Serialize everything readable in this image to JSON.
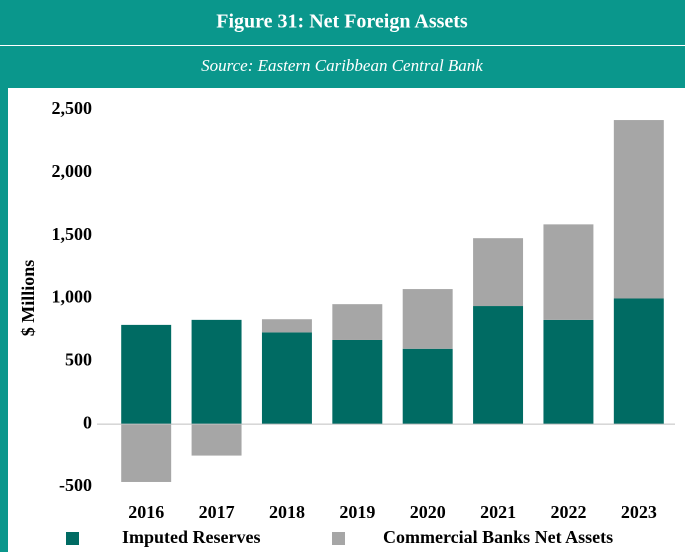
{
  "chart_data": {
    "type": "stacked_bar",
    "title": "Figure 31: Net Foreign Assets",
    "subtitle": "Source: Eastern Caribbean Central Bank",
    "y_label": "$ Millions",
    "categories": [
      "2016",
      "2017",
      "2018",
      "2019",
      "2020",
      "2021",
      "2022",
      "2023"
    ],
    "series": [
      {
        "name": "Imputed Reserves",
        "color": "#006b63",
        "values": [
          790,
          830,
          730,
          670,
          600,
          940,
          830,
          1000
        ]
      },
      {
        "name": "Commercial Banks Net Assets",
        "color": "#a6a6a6",
        "values": [
          -460,
          -250,
          105,
          285,
          475,
          540,
          760,
          1420
        ]
      }
    ],
    "ylim": [
      -500,
      2500
    ],
    "yticks": [
      -500,
      0,
      500,
      {
        "value": 1000,
        "label": "1,000"
      },
      {
        "value": 1500,
        "label": "1,500"
      },
      {
        "value": 2000,
        "label": "2,000"
      },
      {
        "value": 2500,
        "label": "2,500"
      }
    ],
    "legend": "bottom"
  }
}
